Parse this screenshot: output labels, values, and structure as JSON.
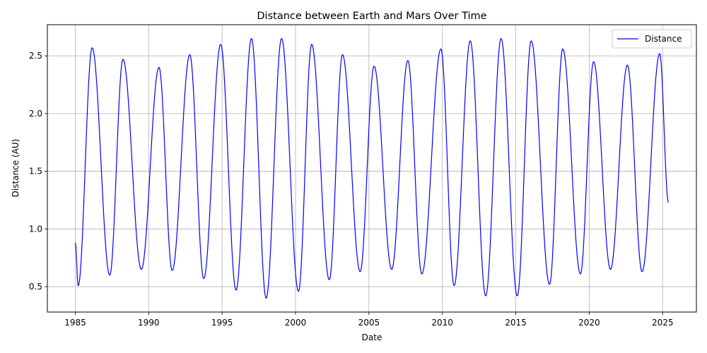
{
  "chart_data": {
    "type": "line",
    "title": "Distance between Earth and Mars Over Time",
    "xlabel": "Date",
    "ylabel": "Distance (AU)",
    "xlim": [
      1983.1,
      2027.3
    ],
    "ylim": [
      0.28,
      2.77
    ],
    "grid": true,
    "legend_position": "top-right",
    "x_ticks": [
      1985,
      1990,
      1995,
      2000,
      2005,
      2010,
      2015,
      2020,
      2025
    ],
    "x_tick_labels": [
      "1985",
      "1990",
      "1995",
      "2000",
      "2005",
      "2010",
      "2015",
      "2020",
      "2025"
    ],
    "y_ticks": [
      0.5,
      1.0,
      1.5,
      2.0,
      2.5
    ],
    "y_tick_labels": [
      "0.5",
      "1.0",
      "1.5",
      "2.0",
      "2.5"
    ],
    "series": [
      {
        "name": "Distance",
        "color": "#0000ff",
        "x": [
          1985.0,
          1985.2,
          1986.15,
          1987.35,
          1988.25,
          1989.5,
          1990.7,
          1991.6,
          1992.8,
          1993.75,
          1994.9,
          1995.95,
          1997.0,
          1998.0,
          1999.05,
          2000.2,
          2001.1,
          2002.3,
          2003.2,
          2004.4,
          2005.35,
          2006.55,
          2007.65,
          2008.6,
          2009.9,
          2010.8,
          2011.9,
          2012.95,
          2014.0,
          2015.1,
          2016.05,
          2017.3,
          2018.2,
          2019.4,
          2020.3,
          2021.45,
          2022.6,
          2023.6,
          2024.8,
          2025.4
        ],
        "values": [
          0.88,
          0.51,
          2.57,
          0.6,
          2.47,
          0.65,
          2.4,
          0.64,
          2.51,
          0.57,
          2.6,
          0.47,
          2.65,
          0.4,
          2.65,
          0.46,
          2.6,
          0.56,
          2.51,
          0.63,
          2.41,
          0.65,
          2.46,
          0.61,
          2.56,
          0.51,
          2.63,
          0.42,
          2.65,
          0.42,
          2.63,
          0.52,
          2.56,
          0.61,
          2.45,
          0.65,
          2.42,
          0.63,
          2.52,
          1.23
        ]
      }
    ]
  }
}
